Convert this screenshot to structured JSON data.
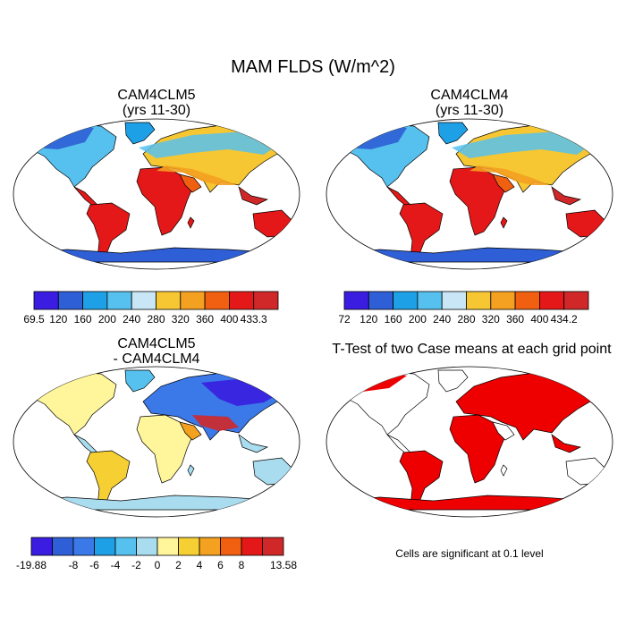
{
  "title": "MAM FLDS (W/m^2)",
  "panels": {
    "top_left": {
      "line1": "CAM4CLM5",
      "line2": "(yrs 11-30)"
    },
    "top_right": {
      "line1": "CAM4CLM4",
      "line2": "(yrs 11-30)"
    },
    "bottom_left": {
      "line1": "CAM4CLM5",
      "line2": "- CAM4CLM4"
    },
    "bottom_right": {
      "line1": "T-Test of two Case means at each grid point"
    }
  },
  "colorbars": {
    "top_left": {
      "labels": [
        "69.5",
        "120",
        "160",
        "200",
        "240",
        "280",
        "320",
        "360",
        "400",
        "433.3"
      ],
      "colors": [
        "#3a1de0",
        "#2f5fd6",
        "#1ea0e6",
        "#56c1ee",
        "#c8e6f5",
        "#f6c733",
        "#f4a020",
        "#f06010",
        "#e41818",
        "#d02828"
      ]
    },
    "top_right": {
      "labels": [
        "72",
        "120",
        "160",
        "200",
        "240",
        "280",
        "320",
        "360",
        "400",
        "434.2"
      ],
      "colors": [
        "#3a1de0",
        "#2f5fd6",
        "#1ea0e6",
        "#56c1ee",
        "#c8e6f5",
        "#f6c733",
        "#f4a020",
        "#f06010",
        "#e41818",
        "#d02828"
      ]
    },
    "bottom_left": {
      "labels": [
        "-19.88",
        "-8",
        "-6",
        "-4",
        "-2",
        "0",
        "2",
        "4",
        "6",
        "8",
        "13.58"
      ],
      "colors": [
        "#3a1de0",
        "#2f5fd6",
        "#3b78e8",
        "#1ea0e6",
        "#56c1ee",
        "#a9dcef",
        "#fff59a",
        "#f6d033",
        "#f4a020",
        "#f06010",
        "#e41818",
        "#d02828"
      ]
    }
  },
  "note": "Cells are significant at 0.1 level",
  "colors": {
    "coast": "#000000",
    "significant": "#ee0000"
  }
}
